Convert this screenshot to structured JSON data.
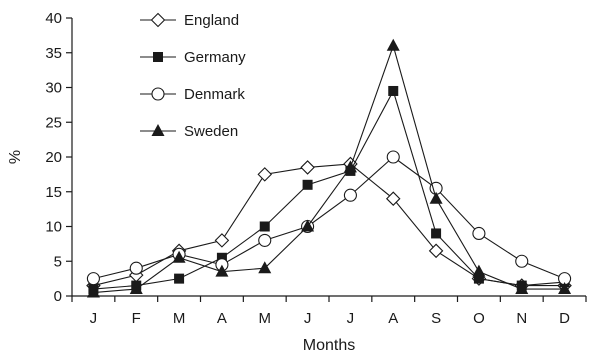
{
  "chart_data": {
    "type": "line",
    "xlabel": "Months",
    "ylabel": "%",
    "categories": [
      "J",
      "F",
      "M",
      "A",
      "M",
      "J",
      "J",
      "A",
      "S",
      "O",
      "N",
      "D"
    ],
    "ylim": [
      0,
      40
    ],
    "yticks": [
      0,
      5,
      10,
      15,
      20,
      25,
      30,
      35,
      40
    ],
    "grid": false,
    "legend_position": "top-left",
    "series": [
      {
        "name": "England",
        "marker": "diamond-open",
        "values": [
          1.5,
          3,
          6.5,
          8,
          17.5,
          18.5,
          19,
          14,
          6.5,
          2.5,
          1.5,
          1.5
        ]
      },
      {
        "name": "Germany",
        "marker": "square-filled",
        "values": [
          1,
          1.5,
          2.5,
          5.5,
          10,
          16,
          18,
          29.5,
          9,
          2.5,
          1.5,
          2
        ]
      },
      {
        "name": "Denmark",
        "marker": "circle-open",
        "values": [
          2.5,
          4,
          6,
          4.5,
          8,
          10,
          14.5,
          20,
          15.5,
          9,
          5,
          2.5
        ]
      },
      {
        "name": "Sweden",
        "marker": "triangle-filled",
        "values": [
          0.5,
          1,
          5.5,
          3.5,
          4,
          10,
          18.5,
          36,
          14,
          3.5,
          1,
          1
        ]
      }
    ]
  }
}
